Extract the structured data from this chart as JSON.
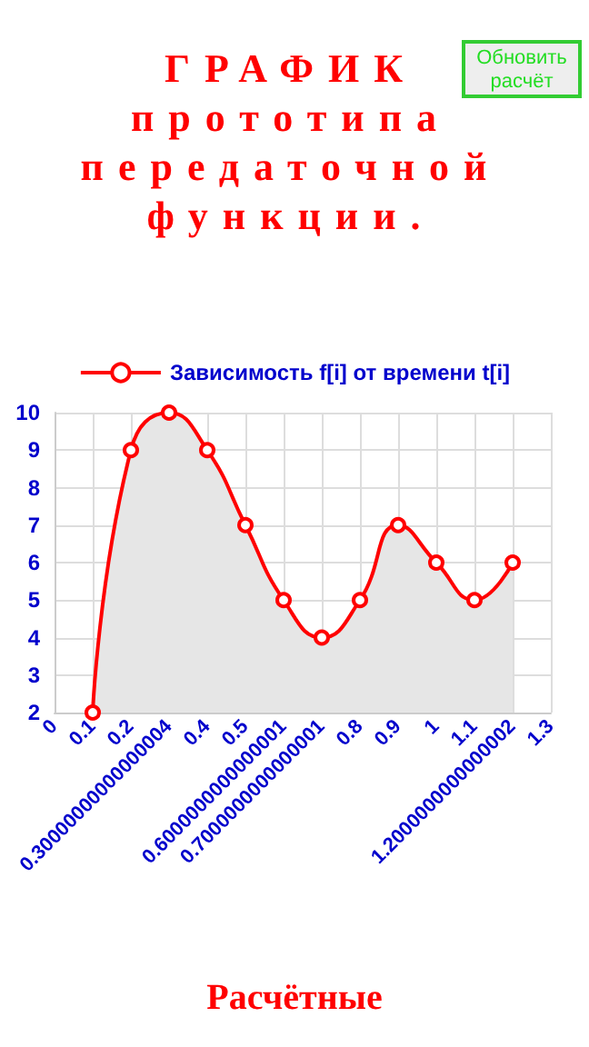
{
  "chart_data": {
    "type": "area",
    "title": "ГРАФИК прототипа передаточной функции.",
    "annotations": [
      "Обновить расчёт",
      "Расчётные"
    ],
    "categories": [
      "0",
      "0.1",
      "0.2",
      "0.30000000000000004",
      "0.4",
      "0.5",
      "0.6000000000000001",
      "0.7000000000000001",
      "0.8",
      "0.9",
      "1",
      "1.1",
      "1.2000000000000002",
      "1.3"
    ],
    "series": [
      {
        "name": "Зависимость f[i] от времени t[i]",
        "color": "#ff0000",
        "values": [
          null,
          2,
          9,
          10,
          9,
          7,
          5,
          4,
          5,
          7,
          6,
          5,
          6,
          null
        ]
      }
    ],
    "ylim": [
      2,
      10
    ],
    "yticks": [
      2,
      3,
      4,
      5,
      6,
      7,
      8,
      9,
      10
    ],
    "grid": true,
    "legend": "top",
    "marker": "circle",
    "line_style": "solid"
  }
}
